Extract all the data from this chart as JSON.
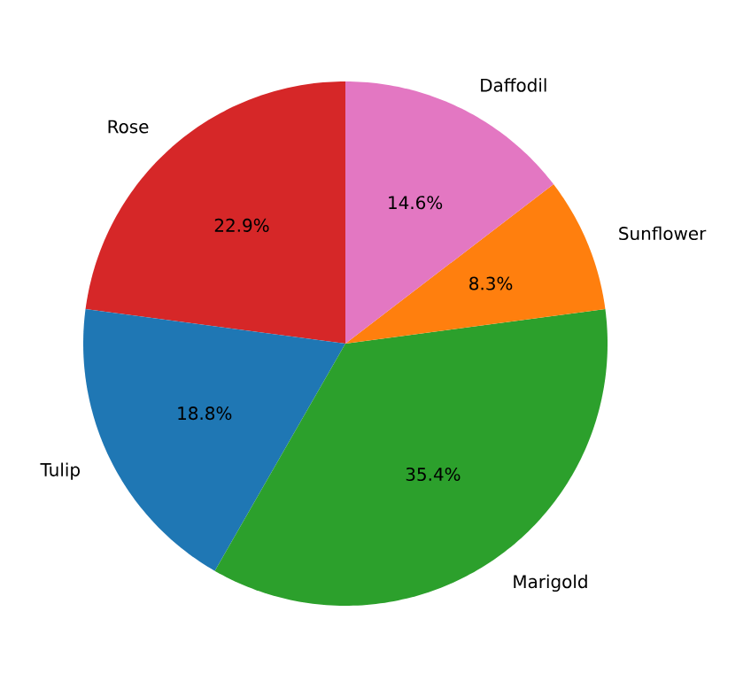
{
  "chart_data": {
    "type": "pie",
    "categories": [
      "Rose",
      "Tulip",
      "Marigold",
      "Sunflower",
      "Daffodil"
    ],
    "values": [
      22.9,
      18.8,
      35.4,
      8.3,
      14.6
    ],
    "colors": [
      "#d62728",
      "#1f77b4",
      "#2ca02c",
      "#ff7f0e",
      "#e377c2"
    ],
    "value_labels": [
      "22.9%",
      "18.8%",
      "35.4%",
      "8.3%",
      "14.6%"
    ]
  }
}
